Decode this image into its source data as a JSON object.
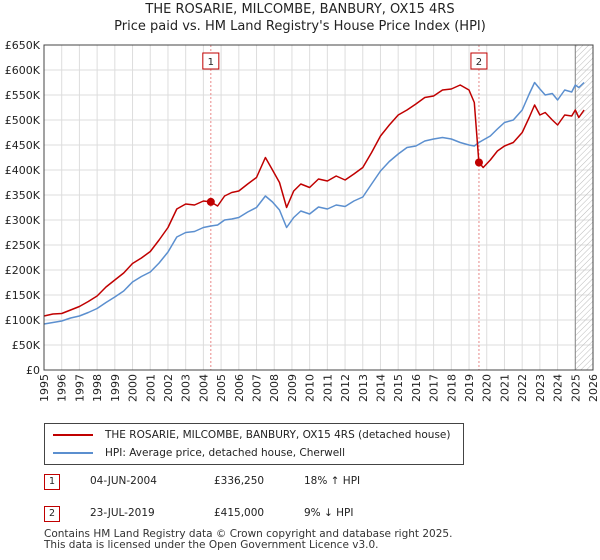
{
  "title": "THE ROSARIE, MILCOMBE, BANBURY, OX15 4RS",
  "subtitle": "Price paid vs. HM Land Registry's House Price Index (HPI)",
  "colors": {
    "property": "#c00000",
    "hpi": "#5b8fcf",
    "grid": "#dddddd",
    "marker": "#e88888"
  },
  "chart_data": {
    "type": "line",
    "xlim": [
      1995,
      2026
    ],
    "ylim": [
      0,
      650000
    ],
    "yticks": [
      0,
      50000,
      100000,
      150000,
      200000,
      250000,
      300000,
      350000,
      400000,
      450000,
      500000,
      550000,
      600000,
      650000
    ],
    "ytick_labels": [
      "£0",
      "£50K",
      "£100K",
      "£150K",
      "£200K",
      "£250K",
      "£300K",
      "£350K",
      "£400K",
      "£450K",
      "£500K",
      "£550K",
      "£600K",
      "£650K"
    ],
    "xtick_labels": [
      "1995",
      "1996",
      "1997",
      "1998",
      "1999",
      "2000",
      "2001",
      "2002",
      "2003",
      "2004",
      "2005",
      "2006",
      "2007",
      "2008",
      "2009",
      "2010",
      "2011",
      "2012",
      "2013",
      "2014",
      "2015",
      "2016",
      "2017",
      "2018",
      "2019",
      "2020",
      "2021",
      "2022",
      "2023",
      "2024",
      "2025",
      "2026"
    ],
    "hatch_from": 2025.0,
    "series": [
      {
        "name": "THE ROSARIE, MILCOMBE, BANBURY, OX15 4RS (detached house)",
        "x": [
          1995.0,
          1995.5,
          1996.0,
          1996.5,
          1997.0,
          1997.5,
          1998.0,
          1998.5,
          1999.0,
          1999.5,
          2000.0,
          2000.5,
          2001.0,
          2001.5,
          2002.0,
          2002.5,
          2003.0,
          2003.5,
          2004.0,
          2004.42,
          2004.8,
          2005.2,
          2005.6,
          2006.0,
          2006.5,
          2007.0,
          2007.5,
          2007.9,
          2008.3,
          2008.7,
          2009.1,
          2009.5,
          2010.0,
          2010.5,
          2011.0,
          2011.5,
          2012.0,
          2012.5,
          2013.0,
          2013.5,
          2014.0,
          2014.5,
          2015.0,
          2015.5,
          2016.0,
          2016.5,
          2017.0,
          2017.5,
          2018.0,
          2018.5,
          2019.0,
          2019.3,
          2019.56,
          2019.8,
          2020.2,
          2020.6,
          2021.0,
          2021.5,
          2022.0,
          2022.4,
          2022.7,
          2023.0,
          2023.3,
          2023.7,
          2024.0,
          2024.4,
          2024.8,
          2025.0,
          2025.2,
          2025.5
        ],
        "y": [
          108000,
          112000,
          113000,
          120000,
          127000,
          137000,
          148000,
          166000,
          180000,
          194000,
          213000,
          224000,
          237000,
          260000,
          285000,
          322000,
          332000,
          330000,
          338000,
          336250,
          328000,
          348000,
          355000,
          358000,
          372000,
          385000,
          425000,
          400000,
          375000,
          325000,
          358000,
          372000,
          365000,
          382000,
          378000,
          388000,
          380000,
          392000,
          405000,
          435000,
          468000,
          490000,
          510000,
          520000,
          532000,
          545000,
          548000,
          560000,
          562000,
          570000,
          560000,
          535000,
          415000,
          405000,
          420000,
          438000,
          448000,
          455000,
          475000,
          505000,
          530000,
          510000,
          515000,
          500000,
          490000,
          510000,
          508000,
          520000,
          505000,
          520000
        ]
      },
      {
        "name": "HPI: Average price, detached house, Cherwell",
        "x": [
          1995.0,
          1995.5,
          1996.0,
          1996.5,
          1997.0,
          1997.5,
          1998.0,
          1998.5,
          1999.0,
          1999.5,
          2000.0,
          2000.5,
          2001.0,
          2001.5,
          2002.0,
          2002.5,
          2003.0,
          2003.5,
          2004.0,
          2004.42,
          2004.8,
          2005.2,
          2005.6,
          2006.0,
          2006.5,
          2007.0,
          2007.5,
          2007.9,
          2008.3,
          2008.7,
          2009.1,
          2009.5,
          2010.0,
          2010.5,
          2011.0,
          2011.5,
          2012.0,
          2012.5,
          2013.0,
          2013.5,
          2014.0,
          2014.5,
          2015.0,
          2015.5,
          2016.0,
          2016.5,
          2017.0,
          2017.5,
          2018.0,
          2018.5,
          2019.0,
          2019.3,
          2019.56,
          2019.8,
          2020.2,
          2020.6,
          2021.0,
          2021.5,
          2022.0,
          2022.4,
          2022.7,
          2023.0,
          2023.3,
          2023.7,
          2024.0,
          2024.4,
          2024.8,
          2025.0,
          2025.2,
          2025.5
        ],
        "y": [
          92000,
          95000,
          98000,
          104000,
          108000,
          115000,
          123000,
          135000,
          146000,
          158000,
          176000,
          187000,
          196000,
          214000,
          236000,
          266000,
          275000,
          277000,
          285000,
          288000,
          290000,
          300000,
          302000,
          305000,
          316000,
          325000,
          348000,
          336000,
          320000,
          285000,
          305000,
          318000,
          312000,
          326000,
          322000,
          330000,
          327000,
          338000,
          346000,
          372000,
          398000,
          417000,
          432000,
          445000,
          448000,
          458000,
          462000,
          465000,
          462000,
          455000,
          450000,
          448000,
          455000,
          460000,
          468000,
          482000,
          495000,
          500000,
          520000,
          552000,
          575000,
          562000,
          550000,
          553000,
          540000,
          560000,
          556000,
          570000,
          565000,
          575000
        ]
      }
    ],
    "transactions": [
      {
        "label": "1",
        "x": 2004.42,
        "price": 336250
      },
      {
        "label": "2",
        "x": 2019.56,
        "price": 415000
      }
    ]
  },
  "legend": {
    "property_label": "THE ROSARIE, MILCOMBE, BANBURY, OX15 4RS (detached house)",
    "hpi_label": "HPI: Average price, detached house, Cherwell"
  },
  "transactions_table": [
    {
      "num": "1",
      "date": "04-JUN-2004",
      "price": "£336,250",
      "hpi": "18% ↑ HPI"
    },
    {
      "num": "2",
      "date": "23-JUL-2019",
      "price": "£415,000",
      "hpi": "9% ↓ HPI"
    }
  ],
  "footer": {
    "line1": "Contains HM Land Registry data © Crown copyright and database right 2025.",
    "line2": "This data is licensed under the Open Government Licence v3.0."
  }
}
